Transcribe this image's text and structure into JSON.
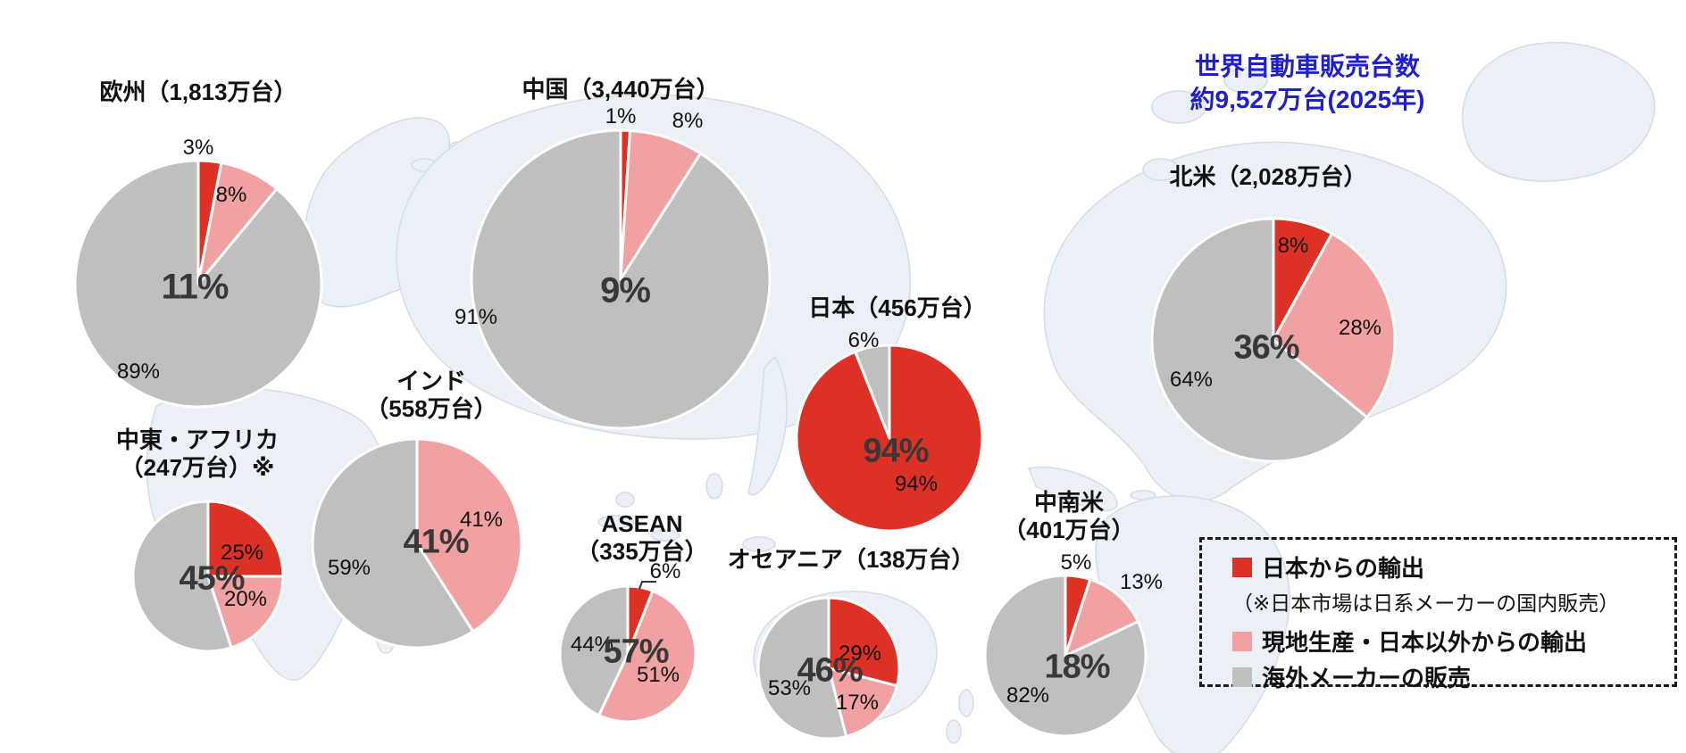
{
  "header": {
    "title": "世界自動車販売台数",
    "subtitle": "約9,527万台(2025年)",
    "color": "#1f1fcd"
  },
  "legend": {
    "items": [
      {
        "label": "日本からの輸出",
        "color": "#dd3126",
        "note": "（※日本市場は日系メーカーの国内販売）"
      },
      {
        "label": "現地生産・日本以外からの輸出",
        "color": "#f1a1a2"
      },
      {
        "label": "海外メーカーの販売",
        "color": "#bfbfbf"
      }
    ]
  },
  "chart_data": {
    "type": "pie",
    "title": "世界自動車販売台数 約9,527万台(2025年)",
    "unit": "%",
    "series": [
      "日本からの輸出",
      "現地生産・日本以外からの輸出",
      "海外メーカーの販売"
    ],
    "series_colors": {
      "日本からの輸出": "#dd3126",
      "現地生産・日本以外からの輸出": "#f1a1a2",
      "海外メーカーの販売": "#bfbfbf"
    },
    "pies": [
      {
        "id": "europe",
        "title_lines": [
          "欧州（1,813万台）"
        ],
        "region": "欧州",
        "volume": "1,813万台",
        "center_value": 11,
        "slices": [
          {
            "series": "日本からの輸出",
            "value": 3
          },
          {
            "series": "現地生産・日本以外からの輸出",
            "value": 8
          },
          {
            "series": "海外メーカーの販売",
            "value": 89
          }
        ]
      },
      {
        "id": "china",
        "title_lines": [
          "中国（3,440万台）"
        ],
        "region": "中国",
        "volume": "3,440万台",
        "center_value": 9,
        "slices": [
          {
            "series": "日本からの輸出",
            "value": 1
          },
          {
            "series": "現地生産・日本以外からの輸出",
            "value": 8
          },
          {
            "series": "海外メーカーの販売",
            "value": 91
          }
        ]
      },
      {
        "id": "japan",
        "title_lines": [
          "日本（456万台）"
        ],
        "region": "日本",
        "volume": "456万台",
        "center_value": 94,
        "slices": [
          {
            "series": "日本からの輸出",
            "value": 94
          },
          {
            "series": "海外メーカーの販売",
            "value": 6
          }
        ]
      },
      {
        "id": "north_america",
        "title_lines": [
          "北米（2,028万台）"
        ],
        "region": "北米",
        "volume": "2,028万台",
        "center_value": 36,
        "slices": [
          {
            "series": "日本からの輸出",
            "value": 8
          },
          {
            "series": "現地生産・日本以外からの輸出",
            "value": 28
          },
          {
            "series": "海外メーカーの販売",
            "value": 64
          }
        ]
      },
      {
        "id": "india",
        "title_lines": [
          "インド",
          "（558万台）"
        ],
        "region": "インド",
        "volume": "558万台",
        "center_value": 41,
        "slices": [
          {
            "series": "現地生産・日本以外からの輸出",
            "value": 41
          },
          {
            "series": "海外メーカーの販売",
            "value": 59
          }
        ]
      },
      {
        "id": "middle_east_africa",
        "title_lines": [
          "中東・アフリカ",
          "（247万台）※"
        ],
        "region": "中東・アフリカ",
        "volume": "247万台",
        "center_value": 45,
        "slices": [
          {
            "series": "日本からの輸出",
            "value": 25
          },
          {
            "series": "現地生産・日本以外からの輸出",
            "value": 20
          },
          {
            "series": "海外メーカーの販売",
            "value": 55
          }
        ]
      },
      {
        "id": "asean",
        "title_lines": [
          "ASEAN",
          "（335万台）"
        ],
        "region": "ASEAN",
        "volume": "335万台",
        "center_value": 57,
        "slices": [
          {
            "series": "日本からの輸出",
            "value": 6
          },
          {
            "series": "現地生産・日本以外からの輸出",
            "value": 51
          },
          {
            "series": "海外メーカーの販売",
            "value": 44
          }
        ]
      },
      {
        "id": "oceania",
        "title_lines": [
          "オセアニア（138万台）"
        ],
        "region": "オセアニア",
        "volume": "138万台",
        "center_value": 46,
        "slices": [
          {
            "series": "日本からの輸出",
            "value": 29
          },
          {
            "series": "現地生産・日本以外からの輸出",
            "value": 17
          },
          {
            "series": "海外メーカーの販売",
            "value": 53
          }
        ]
      },
      {
        "id": "latin_america",
        "title_lines": [
          "中南米",
          "（401万台）"
        ],
        "region": "中南米",
        "volume": "401万台",
        "center_value": 18,
        "slices": [
          {
            "series": "日本からの輸出",
            "value": 5
          },
          {
            "series": "現地生産・日本以外からの輸出",
            "value": 13
          },
          {
            "series": "海外メーカーの販売",
            "value": 82
          }
        ]
      }
    ]
  }
}
